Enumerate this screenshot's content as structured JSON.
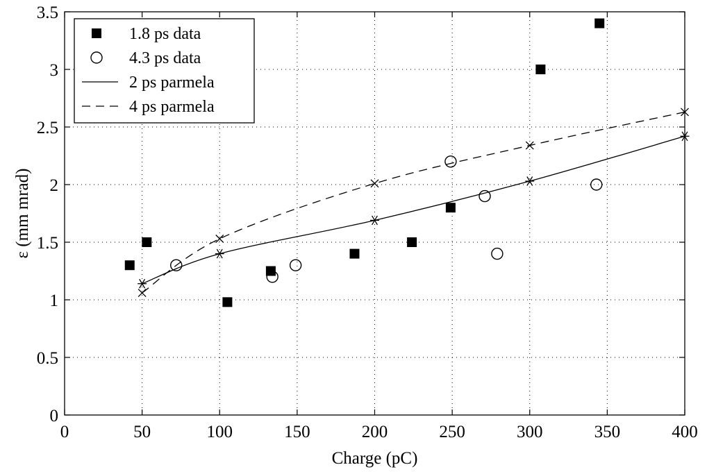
{
  "chart_data": {
    "type": "scatter",
    "xlabel": "Charge (pC)",
    "ylabel": "ε (mm mrad)",
    "xlim": [
      0,
      400
    ],
    "ylim": [
      0,
      3.5
    ],
    "xticks": [
      0,
      50,
      100,
      150,
      200,
      250,
      300,
      350,
      400
    ],
    "yticks": [
      0,
      0.5,
      1,
      1.5,
      2,
      2.5,
      3,
      3.5
    ],
    "xtick_labels": [
      "0",
      "50",
      "100",
      "150",
      "200",
      "250",
      "300",
      "350",
      "400"
    ],
    "ytick_labels": [
      "0",
      "0.5",
      "1",
      "1.5",
      "2",
      "2.5",
      "3",
      "3.5"
    ],
    "grid": true,
    "legend_position": "top-left",
    "series": [
      {
        "name": "1.8 ps data",
        "marker": "filled-square",
        "line": "none",
        "x": [
          42,
          53,
          105,
          133,
          187,
          224,
          249,
          307,
          345
        ],
        "y": [
          1.3,
          1.5,
          0.98,
          1.25,
          1.4,
          1.5,
          1.8,
          3.0,
          3.4
        ]
      },
      {
        "name": "4.3 ps data",
        "marker": "open-circle",
        "line": "none",
        "x": [
          72,
          134,
          149,
          249,
          271,
          279,
          343
        ],
        "y": [
          1.3,
          1.2,
          1.3,
          2.2,
          1.9,
          1.4,
          2.0
        ]
      },
      {
        "name": "2 ps parmela",
        "marker": "asterisk",
        "line": "solid",
        "x": [
          50,
          100,
          200,
          300,
          400
        ],
        "y": [
          1.14,
          1.4,
          1.69,
          2.03,
          2.42
        ]
      },
      {
        "name": "4 ps parmela",
        "marker": "x",
        "line": "dashed",
        "x": [
          50,
          100,
          200,
          300,
          400
        ],
        "y": [
          1.06,
          1.53,
          2.01,
          2.34,
          2.63
        ]
      }
    ]
  }
}
